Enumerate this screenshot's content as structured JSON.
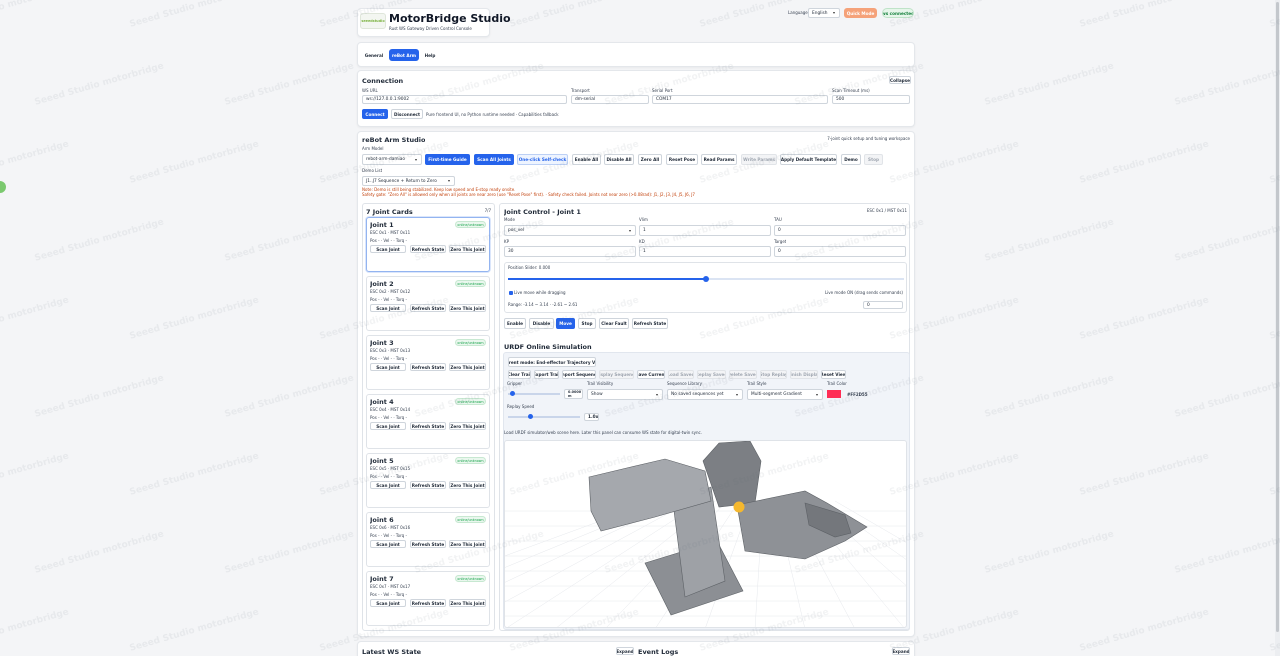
{
  "header": {
    "logo": "seeedstudio",
    "title": "MotorBridge Studio",
    "subtitle": "Rust WS Gateway Driven Control Console",
    "language_label": "Language",
    "language": "English",
    "quick_mode": "Quick Mode",
    "status": "ws connected"
  },
  "watermark": "Seeed Studio motorbridge",
  "tabs": [
    "General",
    "reBot Arm",
    "Help"
  ],
  "connection": {
    "title": "Connection",
    "collapse": "Collapse",
    "fields": [
      {
        "label": "WS URL",
        "value": "ws://127.0.0.1:9002"
      },
      {
        "label": "Transport",
        "value": "dm-serial"
      },
      {
        "label": "Serial Port",
        "value": "COM17"
      },
      {
        "label": "Scan Timeout (ms)",
        "value": "500"
      }
    ],
    "buttons": [
      "Connect",
      "Disconnect"
    ],
    "note": "Pure frontend UI, no Python runtime needed · Capabilities fallback"
  },
  "studio": {
    "title": "reBot Arm Studio",
    "hint": "7-joint quick setup and tuning workspace",
    "arm_model_label": "Arm Model",
    "arm_model": "rebot-arm-damiao",
    "buttons": [
      "First-time Guide",
      "Scan All Joints",
      "One-click Self-check",
      "Enable All",
      "Disable All",
      "Zero All",
      "Reset Pose",
      "Read Params",
      "Write Params",
      "Apply Default Template",
      "Demo",
      "Stop"
    ],
    "demo_list_label": "Demo List",
    "demo": "J1..J7 Sequence + Return to Zero",
    "notes": [
      "Note: Demo is still being stabilized. Keep low speed and E-stop ready onsite.",
      "Safety gate: \"Zero All\" is allowed only when all joints are near zero (use \"Reset Pose\" first). · Safety check failed. Joints not near zero (>0.08rad): J1, J2, J3, J4, J5, J6, J7"
    ]
  },
  "joints": {
    "title": "7 Joint Cards",
    "count": "7/7",
    "cards": [
      {
        "name": "Joint 1",
        "badge": "online/unknown",
        "ids": "ESC 0x1 · MST 0x11",
        "readout": "Pos - · Vel - · Torq -"
      },
      {
        "name": "Joint 2",
        "badge": "online/unknown",
        "ids": "ESC 0x2 · MST 0x12",
        "readout": "Pos - · Vel - · Torq -"
      },
      {
        "name": "Joint 3",
        "badge": "online/unknown",
        "ids": "ESC 0x3 · MST 0x13",
        "readout": "Pos - · Vel - · Torq -"
      },
      {
        "name": "Joint 4",
        "badge": "online/unknown",
        "ids": "ESC 0x4 · MST 0x14",
        "readout": "Pos - · Vel - · Torq -"
      },
      {
        "name": "Joint 5",
        "badge": "online/unknown",
        "ids": "ESC 0x5 · MST 0x15",
        "readout": "Pos - · Vel - · Torq -"
      },
      {
        "name": "Joint 6",
        "badge": "online/unknown",
        "ids": "ESC 0x6 · MST 0x16",
        "readout": "Pos - · Vel - · Torq -"
      },
      {
        "name": "Joint 7",
        "badge": "online/unknown",
        "ids": "ESC 0x7 · MST 0x17",
        "readout": "Pos - · Vel - · Torq -"
      }
    ],
    "buttons": [
      "Scan Joint",
      "Refresh State",
      "Zero This Joint"
    ]
  },
  "control": {
    "title": "Joint Control - Joint 1",
    "ids": "ESC 0x1 / MST 0x11",
    "fields": [
      {
        "label": "Mode",
        "value": "pos_vel"
      },
      {
        "label": "Vlim",
        "value": 1
      },
      {
        "label": "TAU",
        "value": 0
      },
      {
        "label": "KP",
        "value": 30
      },
      {
        "label": "KD",
        "value": 1
      },
      {
        "label": "Target",
        "value": 0
      }
    ],
    "slider_label": "Position Slider: 0.000",
    "live_move": "Live move while dragging",
    "live_mode": "Live mode ON (drag sends commands)",
    "input": 0,
    "range": "Range: -3.14 ~ 3.14 · -2.61 ~ 2.61",
    "buttons": [
      "Enable",
      "Disable",
      "Move",
      "Stop",
      "Clear Fault",
      "Refresh State"
    ]
  },
  "urdf": {
    "title": "URDF Online Simulation",
    "mode": "Current mode: End-effector Trajectory View",
    "buttons": [
      "Clear Trail",
      "Export Trail",
      "Import Sequence",
      "Display Sequence",
      "Save Current",
      "Load Saved",
      "Replay Saved",
      "Delete Saved",
      "Stop Replay",
      "Finish Display",
      "Reset View"
    ],
    "gripper_label": "Gripper",
    "gripper_value": "0.0000 m",
    "controls": [
      {
        "label": "Trail Visibility",
        "value": "Show"
      },
      {
        "label": "Sequence Library",
        "value": "No saved sequences yet"
      },
      {
        "label": "Trail Style",
        "value": "Multi-segment Gradient"
      },
      {
        "label": "Trail Color",
        "value": "#FF2D55"
      }
    ],
    "replay_label": "Replay Speed",
    "replay_value": "1.0x",
    "description": "Load URDF simulator/web scene here. Later this panel can consume WS state for digital-twin sync."
  },
  "footer": {
    "ws_state": "Latest WS State",
    "event_logs": "Event Logs",
    "expand": "Expand"
  }
}
